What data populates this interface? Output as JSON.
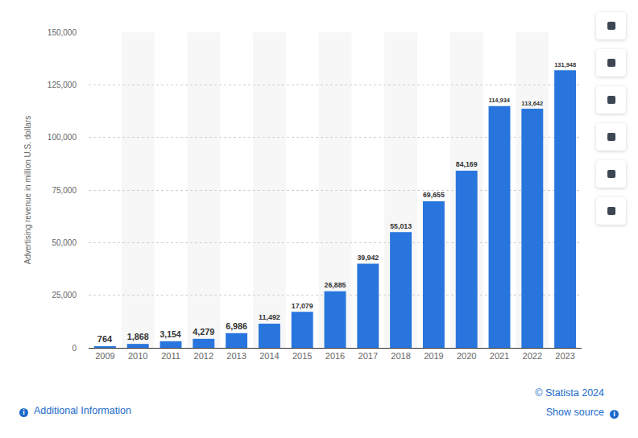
{
  "chart_data": {
    "type": "bar",
    "categories": [
      "2009",
      "2010",
      "2011",
      "2012",
      "2013",
      "2014",
      "2015",
      "2016",
      "2017",
      "2018",
      "2019",
      "2020",
      "2021",
      "2022",
      "2023"
    ],
    "values": [
      764,
      1868,
      3154,
      4279,
      6986,
      11492,
      17079,
      26885,
      39942,
      55013,
      69655,
      84169,
      114934,
      113642,
      131948
    ],
    "value_labels": [
      "764",
      "1,868",
      "3,154",
      "4,279",
      "6,986",
      "11,492",
      "17,079",
      "26,885",
      "39,942",
      "55,013",
      "69,655",
      "84,169",
      "114,934",
      "113,642",
      "131,948"
    ],
    "color": "#2876dd",
    "ylabel": "Advertising revenue in million U.S. dollars",
    "ylim": [
      0,
      150000
    ],
    "yticks": [
      0,
      {
        "value": 25000,
        "label": "25,000"
      },
      {
        "value": 50000,
        "label": "50,000"
      },
      {
        "value": 75000,
        "label": "75,000"
      },
      {
        "value": 100000,
        "label": "100,000"
      },
      {
        "value": 125000,
        "label": "125,000"
      },
      {
        "value": 150000,
        "label": "150,000"
      }
    ],
    "grid": true,
    "data_labels": true,
    "annotations": [
      "© Statista 2024",
      "Additional Information",
      "Show source"
    ]
  }
}
